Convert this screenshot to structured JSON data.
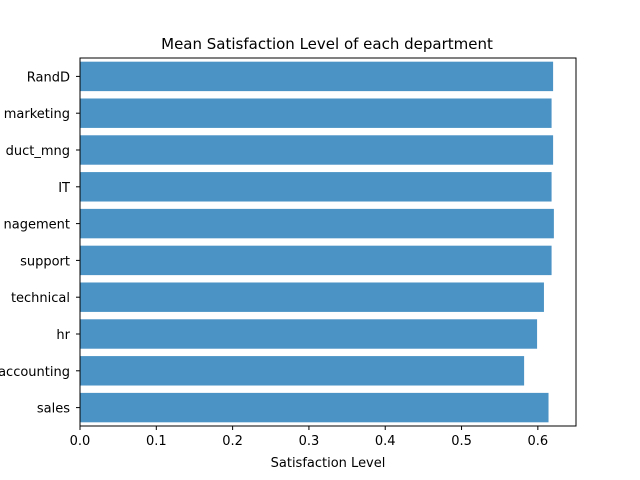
{
  "chart_data": {
    "type": "bar",
    "orientation": "horizontal",
    "title": "Mean Satisfaction Level of each department",
    "xlabel": "Satisfaction Level",
    "ylabel": "",
    "categories": [
      "sales",
      "accounting",
      "hr",
      "technical",
      "support",
      "management",
      "IT",
      "product_mng",
      "marketing",
      "RandD"
    ],
    "category_tick_labels": [
      "sales",
      "accounting",
      "hr",
      "technical",
      "support",
      "nagement",
      "IT",
      "duct_mng",
      "marketing",
      "RandD"
    ],
    "values": [
      0.614,
      0.582,
      0.599,
      0.608,
      0.618,
      0.621,
      0.618,
      0.62,
      0.618,
      0.62
    ],
    "xlim": [
      0.0,
      0.65
    ],
    "xticks": [
      0.0,
      0.1,
      0.2,
      0.3,
      0.4,
      0.5,
      0.6
    ],
    "xtick_labels": [
      "0.0",
      "0.1",
      "0.2",
      "0.3",
      "0.4",
      "0.5",
      "0.6"
    ],
    "bar_color": "#4c93c5",
    "grid": false,
    "legend": "none"
  }
}
